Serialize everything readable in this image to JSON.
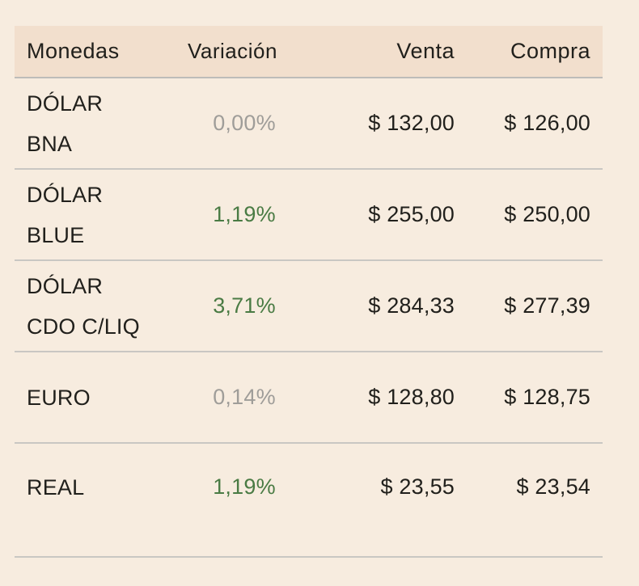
{
  "table": {
    "columns": [
      {
        "label": "Monedas"
      },
      {
        "label": "Variación"
      },
      {
        "label": "Venta"
      },
      {
        "label": "Compra"
      }
    ],
    "rows": [
      {
        "name_line1": "DÓLAR",
        "name_line2": "BNA",
        "variation": "0,00%",
        "variation_state": "neutral",
        "sell": "$ 132,00",
        "buy": "$ 126,00"
      },
      {
        "name_line1": "DÓLAR",
        "name_line2": "BLUE",
        "variation": "1,19%",
        "variation_state": "positive",
        "sell": "$ 255,00",
        "buy": "$ 250,00"
      },
      {
        "name_line1": "DÓLAR",
        "name_line2": "CDO C/LIQ",
        "variation": "3,71%",
        "variation_state": "positive",
        "sell": "$ 284,33",
        "buy": "$ 277,39"
      },
      {
        "name_line1": "EURO",
        "variation": "0,14%",
        "variation_state": "neutral",
        "sell": "$ 128,80",
        "buy": "$ 128,75"
      },
      {
        "name_line1": "REAL",
        "variation": "1,19%",
        "variation_state": "positive",
        "sell": "$ 23,55",
        "buy": "$ 23,54"
      }
    ],
    "colors": {
      "page_bg": "#f7ecdf",
      "header_bg": "#f2dfcd",
      "divider": "#c9c7c3",
      "header_divider": "#bdbcb9",
      "text": "#21201c",
      "neutral": "#9f9d99",
      "positive": "#4a7b44"
    }
  }
}
